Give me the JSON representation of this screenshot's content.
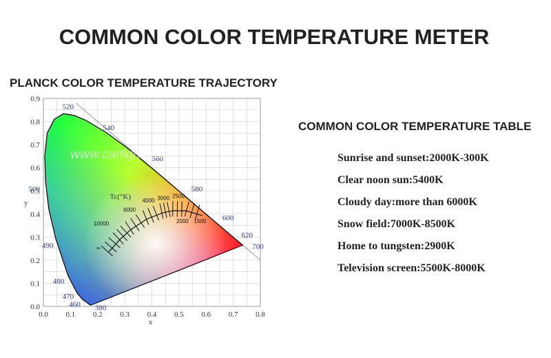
{
  "title": "COMMON COLOR TEMPERATURE METER",
  "diagram": {
    "title": "PLANCK COLOR TEMPERATURE TRAJECTORY",
    "x_label": "x",
    "y_label": "y",
    "x_ticks": [
      "0.0",
      "0.1",
      "0.2",
      "0.3",
      "0.4",
      "0.5",
      "0.6",
      "0.7",
      "0.8"
    ],
    "y_ticks": [
      "0.0",
      "0.1",
      "0.2",
      "0.3",
      "0.4",
      "0.5",
      "0.6",
      "0.7",
      "0.8",
      "0.9"
    ],
    "wavelengths": [
      "520",
      "540",
      "560",
      "580",
      "600",
      "620",
      "700",
      "500",
      "490",
      "480",
      "470",
      "460",
      "380"
    ],
    "locus_label": "Tc(°K)",
    "temperatures": [
      "10000",
      "6000",
      "4000",
      "3000",
      "2500",
      "2000",
      "1500",
      "∞"
    ],
    "watermark": "www.carlight-led.com"
  },
  "table": {
    "title": "COMMON COLOR TEMPERATURE TABLE",
    "rows": [
      "Sunrise and sunset:2000K-300K",
      "Clear noon sun:5400K",
      "Cloudy day:more than 6000K",
      "Snow field:7000K-8500K",
      "Home to tungsten:2900K",
      "Television screen:5500K-8000K"
    ]
  }
}
